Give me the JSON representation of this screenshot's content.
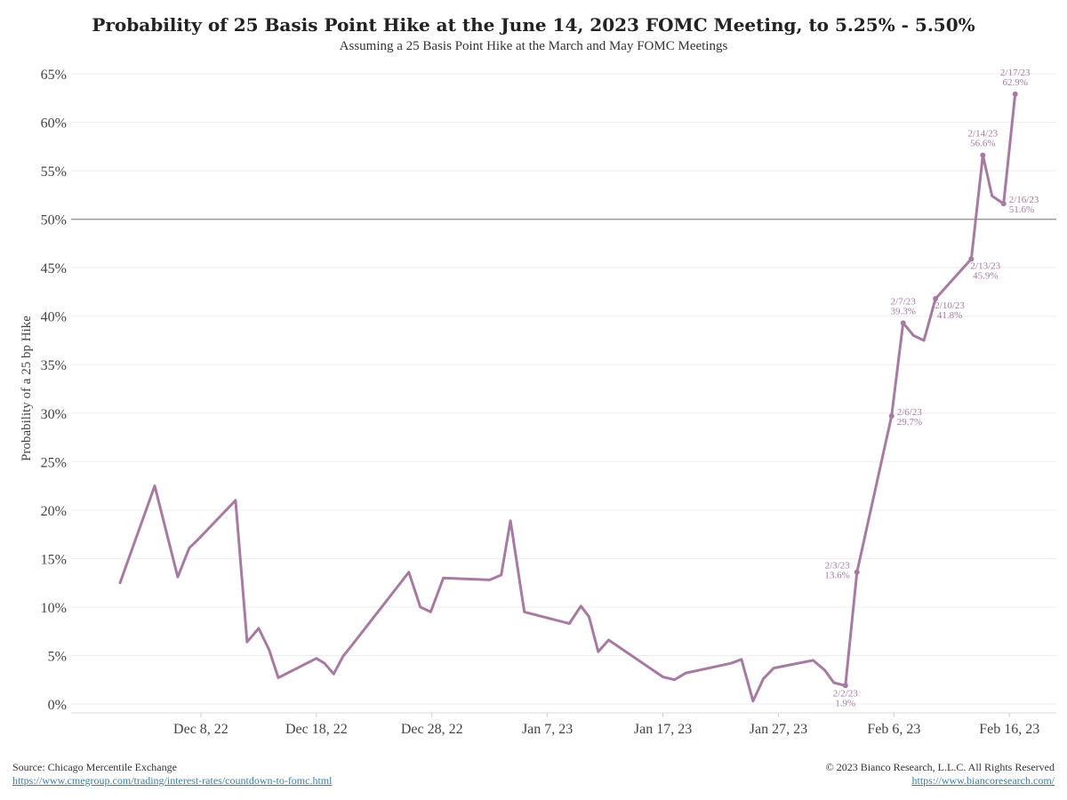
{
  "chart_data": {
    "type": "line",
    "title": "Probability of 25 Basis Point Hike at the June 14, 2023 FOMC Meeting, to 5.25% - 5.50%",
    "subtitle": "Assuming a 25 Basis Point Hike at the March and May FOMC Meetings",
    "ylabel": "Probability of a 25 bp Hike",
    "xlabel": "",
    "ylim": [
      0,
      65
    ],
    "y_ticks": [
      0,
      5,
      10,
      15,
      20,
      25,
      30,
      35,
      40,
      45,
      50,
      55,
      60,
      65
    ],
    "y_tick_labels": [
      "0%",
      "5%",
      "10%",
      "15%",
      "20%",
      "25%",
      "30%",
      "35%",
      "40%",
      "45%",
      "50%",
      "55%",
      "60%",
      "65%"
    ],
    "x_ticks": [
      {
        "day": 7,
        "label": "Dec 8, 22"
      },
      {
        "day": 17,
        "label": "Dec 18, 22"
      },
      {
        "day": 27,
        "label": "Dec 28, 22"
      },
      {
        "day": 37,
        "label": "Jan 7, 23"
      },
      {
        "day": 47,
        "label": "Jan 17, 23"
      },
      {
        "day": 57,
        "label": "Jan 27, 23"
      },
      {
        "day": 67,
        "label": "Feb 6, 23"
      },
      {
        "day": 77,
        "label": "Feb 16, 23"
      }
    ],
    "reference_line": 50,
    "series": [
      {
        "name": "Probability of a 25 bp Hike",
        "color": "#a77aa1",
        "points": [
          [
            0,
            12.5
          ],
          [
            3,
            22.5
          ],
          [
            5,
            13.1
          ],
          [
            6,
            16.1
          ],
          [
            6.7,
            16.9
          ],
          [
            10,
            21.0
          ],
          [
            11,
            6.4
          ],
          [
            12,
            7.8
          ],
          [
            12.9,
            5.6
          ],
          [
            13.7,
            2.7
          ],
          [
            17,
            4.7
          ],
          [
            17.7,
            4.2
          ],
          [
            18.5,
            3.1
          ],
          [
            19.3,
            4.9
          ],
          [
            20.3,
            6.4
          ],
          [
            25,
            13.6
          ],
          [
            26,
            10.0
          ],
          [
            26.9,
            9.5
          ],
          [
            28,
            13.0
          ],
          [
            32,
            12.8
          ],
          [
            33,
            13.3
          ],
          [
            33.8,
            18.9
          ],
          [
            35,
            9.5
          ],
          [
            38.9,
            8.3
          ],
          [
            39.9,
            10.1
          ],
          [
            40.6,
            9.0
          ],
          [
            41.4,
            5.4
          ],
          [
            42.3,
            6.6
          ],
          [
            47,
            2.8
          ],
          [
            48,
            2.5
          ],
          [
            49,
            3.2
          ],
          [
            52.9,
            4.2
          ],
          [
            53.8,
            4.6
          ],
          [
            54.8,
            0.3
          ],
          [
            55.7,
            2.6
          ],
          [
            56.6,
            3.7
          ],
          [
            60,
            4.5
          ],
          [
            61,
            3.5
          ],
          [
            61.8,
            2.2
          ],
          [
            62.8,
            1.9
          ],
          [
            63.8,
            13.6
          ],
          [
            66.8,
            29.7
          ],
          [
            67.8,
            39.3
          ],
          [
            68.7,
            38.0
          ],
          [
            69.6,
            37.5
          ],
          [
            70.6,
            41.8
          ],
          [
            73.7,
            45.9
          ],
          [
            74.7,
            56.6
          ],
          [
            75.5,
            52.4
          ],
          [
            76.5,
            51.6
          ],
          [
            77.5,
            62.9
          ]
        ]
      }
    ],
    "annotations": [
      {
        "day": 62.8,
        "value": 1.9,
        "date": "2/2/23",
        "text": "1.9%",
        "pos": "below"
      },
      {
        "day": 63.8,
        "value": 13.6,
        "date": "2/3/23",
        "text": "13.6%",
        "pos": "left"
      },
      {
        "day": 66.8,
        "value": 29.7,
        "date": "2/6/23",
        "text": "29.7%",
        "pos": "right"
      },
      {
        "day": 67.8,
        "value": 39.3,
        "date": "2/7/23",
        "text": "39.3%",
        "pos": "above"
      },
      {
        "day": 70.6,
        "value": 41.8,
        "date": "2/10/23",
        "text": "41.8%",
        "pos": "belowright"
      },
      {
        "day": 73.7,
        "value": 45.9,
        "date": "2/13/23",
        "text": "45.9%",
        "pos": "belowright"
      },
      {
        "day": 74.7,
        "value": 56.6,
        "date": "2/14/23",
        "text": "56.6%",
        "pos": "above"
      },
      {
        "day": 76.5,
        "value": 51.6,
        "date": "2/16/23",
        "text": "51.6%",
        "pos": "right"
      },
      {
        "day": 77.5,
        "value": 62.9,
        "date": "2/17/23",
        "text": "62.9%",
        "pos": "above"
      }
    ]
  },
  "footer": {
    "source": "Source: Chicago Mercentile Exchange",
    "source_url": "https://www.cmegroup.com/trading/interest-rates/countdown-to-fomc.html",
    "copyright": "© 2023 Bianco Research, L.L.C. All Rights Reserved",
    "site_url": "https://www.biancoresearch.com/"
  }
}
